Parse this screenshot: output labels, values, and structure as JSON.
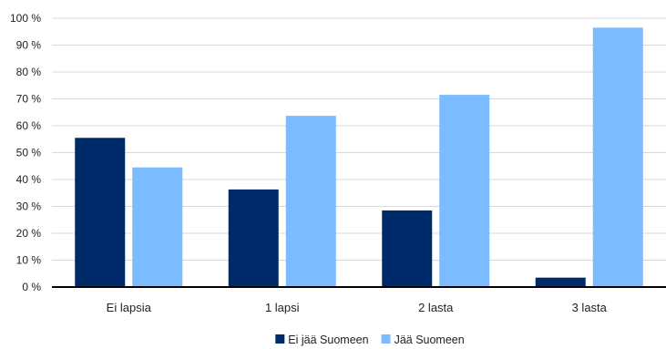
{
  "chart_data": {
    "type": "bar",
    "title": "",
    "xlabel": "",
    "ylabel": "",
    "categories": [
      "Ei lapsia",
      "1 lapsi",
      "2 lasta",
      "3 lasta"
    ],
    "series": [
      {
        "name": "Ei jää Suomeen",
        "color": "#002b6b",
        "values": [
          55.5,
          36.3,
          28.5,
          3.5
        ]
      },
      {
        "name": "Jää Suomeen",
        "color": "#7abcff",
        "values": [
          44.5,
          63.7,
          71.5,
          96.5
        ]
      }
    ],
    "ylim": [
      0,
      100
    ],
    "yticks": [
      0,
      10,
      20,
      30,
      40,
      50,
      60,
      70,
      80,
      90,
      100
    ],
    "ytick_labels": [
      "0 %",
      "10 %",
      "20 %",
      "30 %",
      "40 %",
      "50 %",
      "60 %",
      "70 %",
      "80 %",
      "90 %",
      "100 %"
    ],
    "grid": true,
    "legend_position": "bottom-center"
  }
}
